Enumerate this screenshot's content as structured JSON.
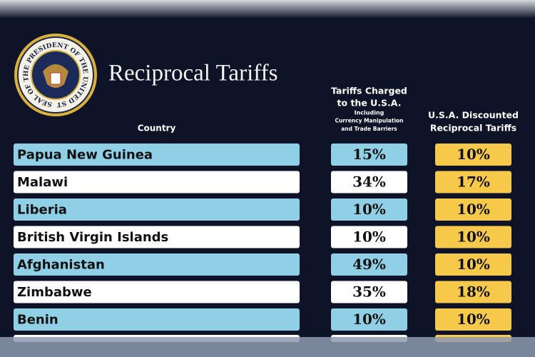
{
  "header": {
    "title": "Reciprocal Tariffs",
    "seal_text": "SEAL OF THE PRESIDENT OF THE UNITED STATES"
  },
  "table": {
    "columns": [
      {
        "title": [
          "Country"
        ]
      },
      {
        "title": [
          "Tariffs Charged",
          "to the U.S.A."
        ],
        "subtitle": [
          "Including",
          "Currency Manipulation",
          "and Trade Barriers"
        ]
      },
      {
        "title": [
          "U.S.A. Discounted",
          "Reciprocal Tariffs"
        ]
      }
    ],
    "rows": [
      [
        "Papua New Guinea",
        "15%",
        "10%"
      ],
      [
        "Malawi",
        "34%",
        "17%"
      ],
      [
        "Liberia",
        "10%",
        "10%"
      ],
      [
        "British Virgin Islands",
        "10%",
        "10%"
      ],
      [
        "Afghanistan",
        "49%",
        "10%"
      ],
      [
        "Zimbabwe",
        "35%",
        "18%"
      ],
      [
        "Benin",
        "10%",
        "10%"
      ]
    ]
  }
}
